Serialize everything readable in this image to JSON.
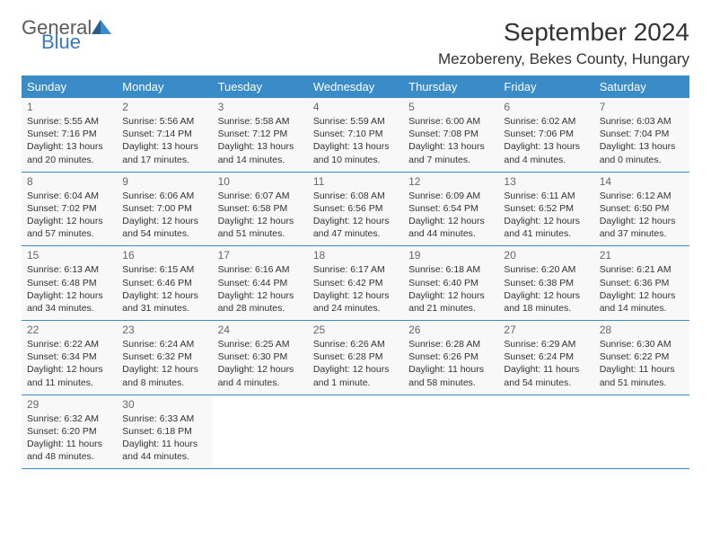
{
  "logo": {
    "text_general": "General",
    "text_blue": "Blue"
  },
  "header": {
    "month_title": "September 2024",
    "location": "Mezobereny, Bekes County, Hungary"
  },
  "colors": {
    "header_bg": "#3a8cc9",
    "header_text": "#ffffff",
    "cell_bg": "#f8f8f8",
    "border": "#3a8cc9",
    "logo_gray": "#5a5a5a",
    "logo_blue": "#3a7ab8"
  },
  "weekdays": [
    "Sunday",
    "Monday",
    "Tuesday",
    "Wednesday",
    "Thursday",
    "Friday",
    "Saturday"
  ],
  "days": [
    {
      "num": "1",
      "sunrise": "Sunrise: 5:55 AM",
      "sunset": "Sunset: 7:16 PM",
      "daylight1": "Daylight: 13 hours",
      "daylight2": "and 20 minutes."
    },
    {
      "num": "2",
      "sunrise": "Sunrise: 5:56 AM",
      "sunset": "Sunset: 7:14 PM",
      "daylight1": "Daylight: 13 hours",
      "daylight2": "and 17 minutes."
    },
    {
      "num": "3",
      "sunrise": "Sunrise: 5:58 AM",
      "sunset": "Sunset: 7:12 PM",
      "daylight1": "Daylight: 13 hours",
      "daylight2": "and 14 minutes."
    },
    {
      "num": "4",
      "sunrise": "Sunrise: 5:59 AM",
      "sunset": "Sunset: 7:10 PM",
      "daylight1": "Daylight: 13 hours",
      "daylight2": "and 10 minutes."
    },
    {
      "num": "5",
      "sunrise": "Sunrise: 6:00 AM",
      "sunset": "Sunset: 7:08 PM",
      "daylight1": "Daylight: 13 hours",
      "daylight2": "and 7 minutes."
    },
    {
      "num": "6",
      "sunrise": "Sunrise: 6:02 AM",
      "sunset": "Sunset: 7:06 PM",
      "daylight1": "Daylight: 13 hours",
      "daylight2": "and 4 minutes."
    },
    {
      "num": "7",
      "sunrise": "Sunrise: 6:03 AM",
      "sunset": "Sunset: 7:04 PM",
      "daylight1": "Daylight: 13 hours",
      "daylight2": "and 0 minutes."
    },
    {
      "num": "8",
      "sunrise": "Sunrise: 6:04 AM",
      "sunset": "Sunset: 7:02 PM",
      "daylight1": "Daylight: 12 hours",
      "daylight2": "and 57 minutes."
    },
    {
      "num": "9",
      "sunrise": "Sunrise: 6:06 AM",
      "sunset": "Sunset: 7:00 PM",
      "daylight1": "Daylight: 12 hours",
      "daylight2": "and 54 minutes."
    },
    {
      "num": "10",
      "sunrise": "Sunrise: 6:07 AM",
      "sunset": "Sunset: 6:58 PM",
      "daylight1": "Daylight: 12 hours",
      "daylight2": "and 51 minutes."
    },
    {
      "num": "11",
      "sunrise": "Sunrise: 6:08 AM",
      "sunset": "Sunset: 6:56 PM",
      "daylight1": "Daylight: 12 hours",
      "daylight2": "and 47 minutes."
    },
    {
      "num": "12",
      "sunrise": "Sunrise: 6:09 AM",
      "sunset": "Sunset: 6:54 PM",
      "daylight1": "Daylight: 12 hours",
      "daylight2": "and 44 minutes."
    },
    {
      "num": "13",
      "sunrise": "Sunrise: 6:11 AM",
      "sunset": "Sunset: 6:52 PM",
      "daylight1": "Daylight: 12 hours",
      "daylight2": "and 41 minutes."
    },
    {
      "num": "14",
      "sunrise": "Sunrise: 6:12 AM",
      "sunset": "Sunset: 6:50 PM",
      "daylight1": "Daylight: 12 hours",
      "daylight2": "and 37 minutes."
    },
    {
      "num": "15",
      "sunrise": "Sunrise: 6:13 AM",
      "sunset": "Sunset: 6:48 PM",
      "daylight1": "Daylight: 12 hours",
      "daylight2": "and 34 minutes."
    },
    {
      "num": "16",
      "sunrise": "Sunrise: 6:15 AM",
      "sunset": "Sunset: 6:46 PM",
      "daylight1": "Daylight: 12 hours",
      "daylight2": "and 31 minutes."
    },
    {
      "num": "17",
      "sunrise": "Sunrise: 6:16 AM",
      "sunset": "Sunset: 6:44 PM",
      "daylight1": "Daylight: 12 hours",
      "daylight2": "and 28 minutes."
    },
    {
      "num": "18",
      "sunrise": "Sunrise: 6:17 AM",
      "sunset": "Sunset: 6:42 PM",
      "daylight1": "Daylight: 12 hours",
      "daylight2": "and 24 minutes."
    },
    {
      "num": "19",
      "sunrise": "Sunrise: 6:18 AM",
      "sunset": "Sunset: 6:40 PM",
      "daylight1": "Daylight: 12 hours",
      "daylight2": "and 21 minutes."
    },
    {
      "num": "20",
      "sunrise": "Sunrise: 6:20 AM",
      "sunset": "Sunset: 6:38 PM",
      "daylight1": "Daylight: 12 hours",
      "daylight2": "and 18 minutes."
    },
    {
      "num": "21",
      "sunrise": "Sunrise: 6:21 AM",
      "sunset": "Sunset: 6:36 PM",
      "daylight1": "Daylight: 12 hours",
      "daylight2": "and 14 minutes."
    },
    {
      "num": "22",
      "sunrise": "Sunrise: 6:22 AM",
      "sunset": "Sunset: 6:34 PM",
      "daylight1": "Daylight: 12 hours",
      "daylight2": "and 11 minutes."
    },
    {
      "num": "23",
      "sunrise": "Sunrise: 6:24 AM",
      "sunset": "Sunset: 6:32 PM",
      "daylight1": "Daylight: 12 hours",
      "daylight2": "and 8 minutes."
    },
    {
      "num": "24",
      "sunrise": "Sunrise: 6:25 AM",
      "sunset": "Sunset: 6:30 PM",
      "daylight1": "Daylight: 12 hours",
      "daylight2": "and 4 minutes."
    },
    {
      "num": "25",
      "sunrise": "Sunrise: 6:26 AM",
      "sunset": "Sunset: 6:28 PM",
      "daylight1": "Daylight: 12 hours",
      "daylight2": "and 1 minute."
    },
    {
      "num": "26",
      "sunrise": "Sunrise: 6:28 AM",
      "sunset": "Sunset: 6:26 PM",
      "daylight1": "Daylight: 11 hours",
      "daylight2": "and 58 minutes."
    },
    {
      "num": "27",
      "sunrise": "Sunrise: 6:29 AM",
      "sunset": "Sunset: 6:24 PM",
      "daylight1": "Daylight: 11 hours",
      "daylight2": "and 54 minutes."
    },
    {
      "num": "28",
      "sunrise": "Sunrise: 6:30 AM",
      "sunset": "Sunset: 6:22 PM",
      "daylight1": "Daylight: 11 hours",
      "daylight2": "and 51 minutes."
    },
    {
      "num": "29",
      "sunrise": "Sunrise: 6:32 AM",
      "sunset": "Sunset: 6:20 PM",
      "daylight1": "Daylight: 11 hours",
      "daylight2": "and 48 minutes."
    },
    {
      "num": "30",
      "sunrise": "Sunrise: 6:33 AM",
      "sunset": "Sunset: 6:18 PM",
      "daylight1": "Daylight: 11 hours",
      "daylight2": "and 44 minutes."
    }
  ]
}
